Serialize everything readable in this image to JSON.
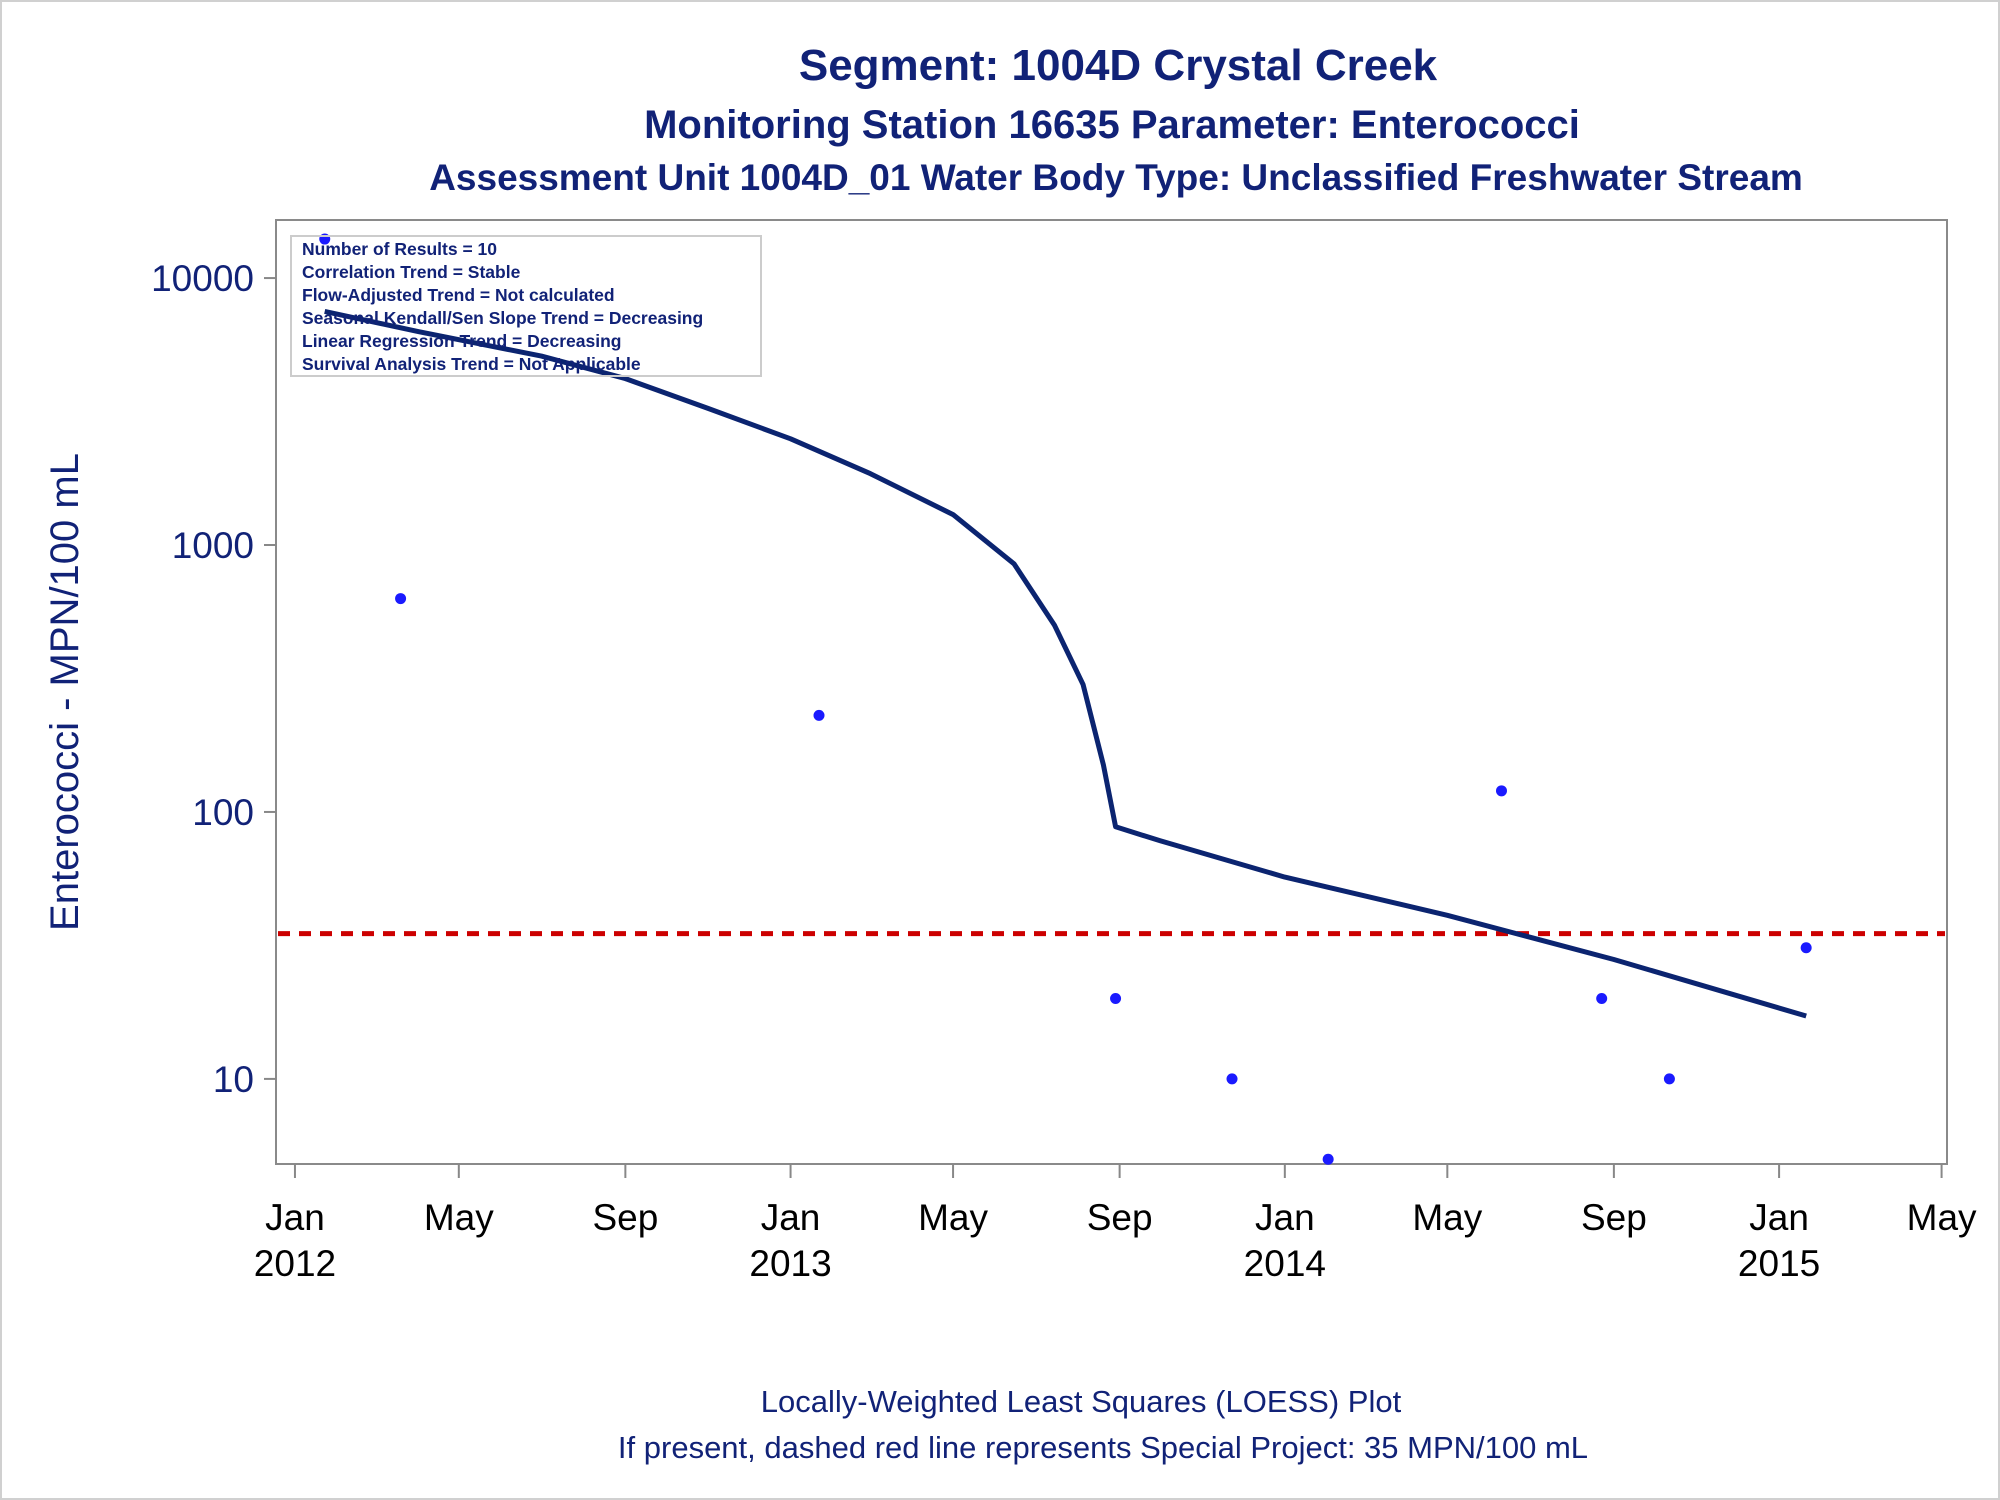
{
  "titles": {
    "line1": "Segment: 1004D  Crystal Creek",
    "line2": "Monitoring Station 16635 Parameter: Enterococci",
    "line3": "Assessment Unit 1004D_01   Water Body Type: Unclassified Freshwater Stream"
  },
  "stats_box": [
    "Number of Results = 10",
    "Correlation Trend = Stable",
    "Flow-Adjusted Trend = Not calculated",
    "Seasonal Kendall/Sen Slope Trend = Decreasing",
    "Linear Regression Trend = Decreasing",
    "Survival Analysis Trend = Not Applicable"
  ],
  "footnotes": {
    "line1": "Locally-Weighted Least Squares (LOESS) Plot",
    "line2": "If present, dashed red line represents Special Project: 35 MPN/100 mL"
  },
  "colors": {
    "text": "#112277",
    "loess_line": "#0b2470",
    "points": "#1a1aff",
    "reference_line": "#cc0000",
    "axis": "#888888"
  },
  "chart_data": {
    "type": "scatter",
    "title": "Segment: 1004D  Crystal Creek",
    "ylabel": "Enterococci - MPN/100 mL",
    "xlabel": "",
    "y_scale": "log",
    "ylim": [
      4.8,
      16500
    ],
    "xlim": [
      "2011-12-18",
      "2015-05-05"
    ],
    "y_ticks": [
      {
        "value": 10,
        "label": "10"
      },
      {
        "value": 100,
        "label": "100"
      },
      {
        "value": 1000,
        "label": "1000"
      },
      {
        "value": 10000,
        "label": "10000"
      }
    ],
    "x_ticks": [
      {
        "date": "2012-01-01",
        "label": "Jan",
        "year": "2012"
      },
      {
        "date": "2012-05-01",
        "label": "May",
        "year": ""
      },
      {
        "date": "2012-09-01",
        "label": "Sep",
        "year": ""
      },
      {
        "date": "2013-01-01",
        "label": "Jan",
        "year": "2013"
      },
      {
        "date": "2013-05-01",
        "label": "May",
        "year": ""
      },
      {
        "date": "2013-09-01",
        "label": "Sep",
        "year": ""
      },
      {
        "date": "2014-01-01",
        "label": "Jan",
        "year": "2014"
      },
      {
        "date": "2014-05-01",
        "label": "May",
        "year": ""
      },
      {
        "date": "2014-09-01",
        "label": "Sep",
        "year": ""
      },
      {
        "date": "2015-01-01",
        "label": "Jan",
        "year": "2015"
      },
      {
        "date": "2015-05-01",
        "label": "May",
        "year": ""
      }
    ],
    "points": [
      {
        "x": "2012-01-23",
        "y": 14000
      },
      {
        "x": "2012-03-19",
        "y": 630
      },
      {
        "x": "2013-01-22",
        "y": 230
      },
      {
        "x": "2013-08-29",
        "y": 20
      },
      {
        "x": "2013-11-23",
        "y": 10
      },
      {
        "x": "2014-02-02",
        "y": 5
      },
      {
        "x": "2014-06-10",
        "y": 120
      },
      {
        "x": "2014-08-23",
        "y": 20
      },
      {
        "x": "2014-10-12",
        "y": 10
      },
      {
        "x": "2015-01-21",
        "y": 31
      }
    ],
    "loess": [
      {
        "x": "2012-01-23",
        "y": 7500
      },
      {
        "x": "2012-04-01",
        "y": 6300
      },
      {
        "x": "2012-07-01",
        "y": 5100
      },
      {
        "x": "2012-09-01",
        "y": 4200
      },
      {
        "x": "2012-11-01",
        "y": 3250
      },
      {
        "x": "2013-01-01",
        "y": 2500
      },
      {
        "x": "2013-03-01",
        "y": 1850
      },
      {
        "x": "2013-05-01",
        "y": 1300
      },
      {
        "x": "2013-06-15",
        "y": 850
      },
      {
        "x": "2013-07-15",
        "y": 500
      },
      {
        "x": "2013-08-05",
        "y": 300
      },
      {
        "x": "2013-08-20",
        "y": 150
      },
      {
        "x": "2013-08-29",
        "y": 88
      },
      {
        "x": "2013-10-01",
        "y": 78
      },
      {
        "x": "2014-01-01",
        "y": 57
      },
      {
        "x": "2014-05-01",
        "y": 41
      },
      {
        "x": "2014-09-01",
        "y": 28
      },
      {
        "x": "2014-12-01",
        "y": 20.5
      },
      {
        "x": "2015-01-21",
        "y": 17.2
      }
    ],
    "reference_line": {
      "y": 35,
      "label": "Special Project: 35 MPN/100 mL"
    },
    "legend_position": "top-left",
    "grid": false
  }
}
